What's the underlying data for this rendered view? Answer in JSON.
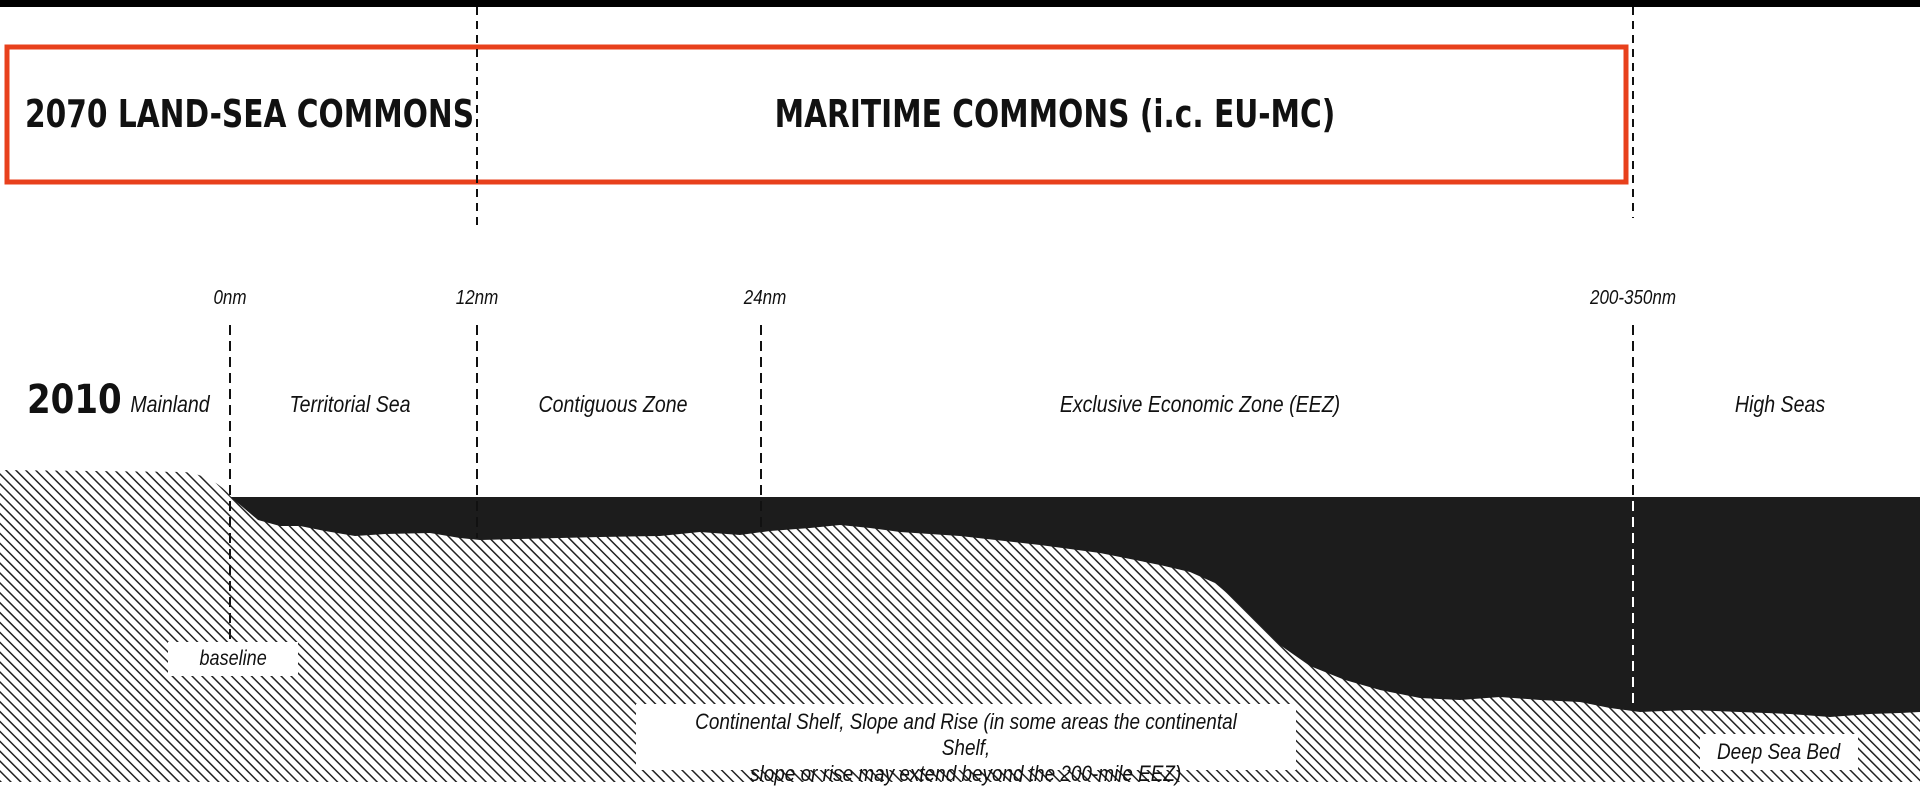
{
  "header": {
    "land_sea_title": "2070 LAND-SEA COMMONS",
    "maritime_title": "MARITIME COMMONS (i.c. EU-MC)",
    "frame_color": "#e8401c"
  },
  "timeline": {
    "year": "2010",
    "markers": [
      "0nm",
      "12nm",
      "24nm",
      "200-350nm"
    ],
    "zones": [
      "Mainland",
      "Territorial Sea",
      "Contiguous Zone",
      "Exclusive Economic Zone (EEZ)",
      "High Seas"
    ]
  },
  "seabed": {
    "baseline_label": "baseline",
    "shelf_label_line1": "Continental Shelf, Slope and Rise (in some areas the continental Shelf,",
    "shelf_label_line2": "slope or rise may extend beyond the 200-mile EEZ)",
    "deep_label": "Deep Sea Bed"
  },
  "colors": {
    "sea": "#1c1c1c",
    "hatch": "#222222",
    "background": "#ffffff"
  }
}
